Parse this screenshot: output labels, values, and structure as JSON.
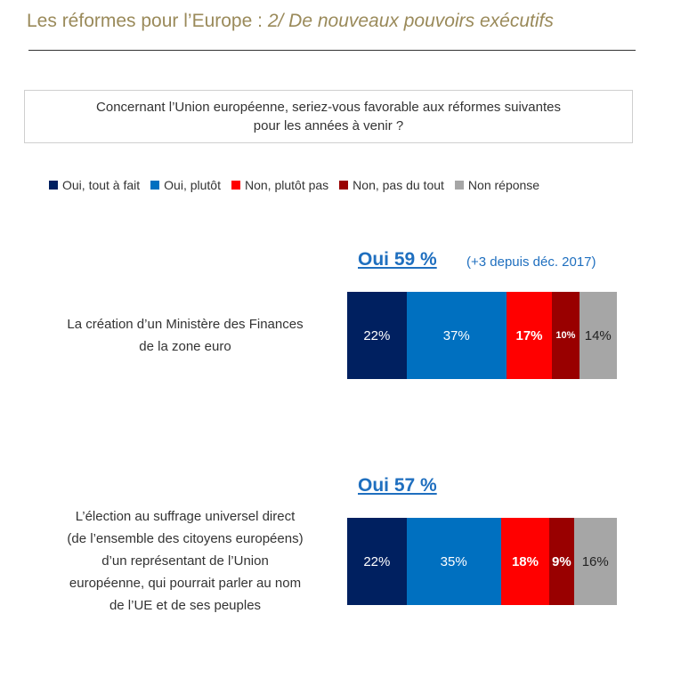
{
  "header": {
    "title_main": "Les réformes pour l’Europe",
    "title_sep": " : ",
    "title_sub": "2/ De nouveaux pouvoirs exécutifs"
  },
  "question": {
    "line1": "Concernant l’Union européenne, seriez-vous favorable aux réformes suivantes",
    "line2": "pour les années à venir ?"
  },
  "colors": {
    "oui_tout_a_fait": "#002060",
    "oui_plutot": "#0070c0",
    "non_plutot_pas": "#ff0000",
    "non_pas_du_tout": "#990000",
    "non_reponse": "#a6a6a6",
    "accent_blue": "#1f6fbf",
    "title_gold": "#9a8a5a"
  },
  "chart_data": {
    "type": "bar",
    "orientation": "horizontal",
    "stacked": true,
    "legend_position": "top",
    "legend": [
      "Oui, tout à fait",
      "Oui, plutôt",
      "Non, plutôt pas",
      "Non, pas du tout",
      "Non réponse"
    ],
    "categories": [
      {
        "label_lines": [
          "La création d’un Ministère des Finances",
          "de la zone euro"
        ],
        "oui_total": "Oui 59 %",
        "note": "(+3 depuis déc. 2017)",
        "values": [
          22,
          37,
          17,
          10,
          14
        ],
        "value_labels": [
          "22%",
          "37%",
          "17%",
          "10%",
          "14%"
        ]
      },
      {
        "label_lines": [
          "L’élection au suffrage universel direct",
          "(de l’ensemble des citoyens européens)",
          "d’un représentant de l’Union",
          "européenne, qui pourrait parler au nom",
          "de l’UE et de ses peuples"
        ],
        "oui_total": "Oui 57 %",
        "note": "",
        "values": [
          22,
          35,
          18,
          9,
          16
        ],
        "value_labels": [
          "22%",
          "35%",
          "18%",
          "9%",
          "16%"
        ]
      }
    ]
  }
}
